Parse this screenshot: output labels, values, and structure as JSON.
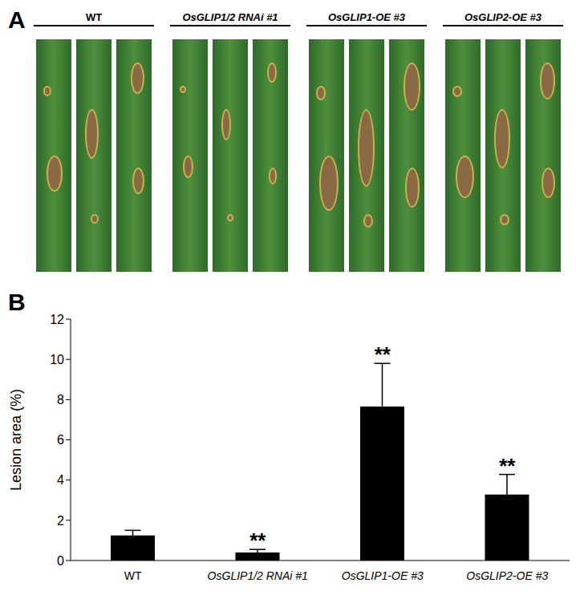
{
  "figure": {
    "panel_labels": [
      "A",
      "B"
    ],
    "photo_groups": [
      "WT",
      "OsGLIP1/2 RNAi #1",
      "OsGLIP1-OE #3",
      "OsGLIP2-OE #3"
    ]
  },
  "chart_data": {
    "type": "bar",
    "y_label": "Lesion area (%)",
    "categories": [
      "WT",
      "OsGLIP1/2 RNAi #1",
      "OsGLIP1-OE #3",
      "OsGLIP2-OE #3"
    ],
    "values": [
      1.25,
      0.4,
      7.65,
      3.28
    ],
    "errors": [
      0.25,
      0.15,
      2.15,
      1.0
    ],
    "color": "#000000",
    "ylim": [
      0,
      12
    ],
    "yticks": [
      0,
      2,
      4,
      6,
      8,
      10,
      12
    ],
    "grid": false,
    "annotations": [
      {
        "category": "OsGLIP1/2 RNAi #1",
        "text": "**"
      },
      {
        "category": "OsGLIP1-OE #3",
        "text": "**"
      },
      {
        "category": "OsGLIP2-OE #3",
        "text": "**"
      }
    ]
  }
}
